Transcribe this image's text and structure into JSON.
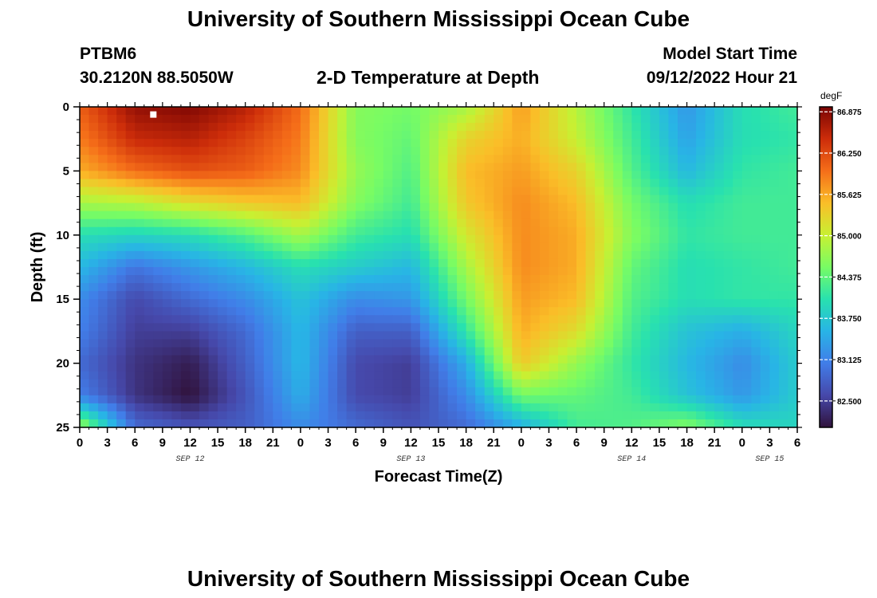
{
  "header": {
    "title": "University of Southern Mississippi Ocean Cube",
    "station_id": "PTBM6",
    "coords": "30.2120N  88.5050W",
    "plot_title": "2-D Temperature at Depth",
    "model_label": "Model Start Time",
    "model_time": "09/12/2022 Hour 21"
  },
  "footer": {
    "title": "University of Southern Mississippi Ocean Cube"
  },
  "chart_data": {
    "type": "heatmap",
    "title": "2-D Temperature at Depth",
    "xlabel": "Forecast Time(Z)",
    "ylabel": "Depth (ft)",
    "colorbar_unit": "degF",
    "x_range_hours": [
      0,
      78
    ],
    "y_range": [
      0,
      25
    ],
    "y_ticks": [
      {
        "value": 0,
        "label": "0"
      },
      {
        "value": 5,
        "label": "5"
      },
      {
        "value": 10,
        "label": "10"
      },
      {
        "value": 15,
        "label": "15"
      },
      {
        "value": 20,
        "label": "20"
      },
      {
        "value": 25,
        "label": "25"
      }
    ],
    "x_tick_labels": [
      "0",
      "3",
      "6",
      "9",
      "12",
      "15",
      "18",
      "21",
      "0",
      "3",
      "6",
      "9",
      "12",
      "15",
      "18",
      "21",
      "0",
      "3",
      "6",
      "9",
      "12",
      "15",
      "18",
      "21",
      "0",
      "3",
      "6"
    ],
    "day_labels": [
      {
        "label": "SEP 12",
        "hour": 12
      },
      {
        "label": "SEP 13",
        "hour": 36
      },
      {
        "label": "SEP 14",
        "hour": 60
      },
      {
        "label": "SEP 15",
        "hour": 75
      }
    ],
    "colorbar": {
      "min": 82.1,
      "max": 86.95,
      "ticks": [
        {
          "value": 82.5,
          "label": "82.500"
        },
        {
          "value": 83.125,
          "label": "83.125"
        },
        {
          "value": 83.75,
          "label": "83.750"
        },
        {
          "value": 84.375,
          "label": "84.375"
        },
        {
          "value": 85.0,
          "label": "85.000"
        },
        {
          "value": 85.625,
          "label": "85.625"
        },
        {
          "value": 86.25,
          "label": "86.250"
        },
        {
          "value": 86.875,
          "label": "86.875"
        }
      ]
    },
    "depth_levels_ft": [
      0,
      2.5,
      5,
      7.5,
      10,
      12.5,
      15,
      17.5,
      20,
      22.5,
      25
    ],
    "time_hours": [
      0,
      6,
      12,
      18,
      24,
      30,
      36,
      42,
      48,
      54,
      60,
      66,
      72,
      78
    ],
    "temperature_degF": [
      [
        86.1,
        86.8,
        86.9,
        86.6,
        86.0,
        84.6,
        84.5,
        84.8,
        85.7,
        84.9,
        84.1,
        83.3,
        84.0,
        84.2
      ],
      [
        85.9,
        86.5,
        86.6,
        86.3,
        85.9,
        84.6,
        84.4,
        85.3,
        85.6,
        85.0,
        84.2,
        83.4,
        84.0,
        84.1
      ],
      [
        85.6,
        86.0,
        86.2,
        86.1,
        85.8,
        84.7,
        84.3,
        85.5,
        85.7,
        85.3,
        84.3,
        83.6,
        84.1,
        84.2
      ],
      [
        84.8,
        84.9,
        85.2,
        85.4,
        85.5,
        84.6,
        84.2,
        85.4,
        85.8,
        85.5,
        84.5,
        84.0,
        84.2,
        84.2
      ],
      [
        84.0,
        83.9,
        84.0,
        84.3,
        84.8,
        84.2,
        84.0,
        85.1,
        85.8,
        85.6,
        84.6,
        84.1,
        84.2,
        84.2
      ],
      [
        83.6,
        83.0,
        83.3,
        83.6,
        84.0,
        83.8,
        83.6,
        84.8,
        85.8,
        85.6,
        84.4,
        84.0,
        84.1,
        84.2
      ],
      [
        83.2,
        82.6,
        82.9,
        83.2,
        83.7,
        83.2,
        83.3,
        84.5,
        85.7,
        85.5,
        84.3,
        84.0,
        84.1,
        84.1
      ],
      [
        83.1,
        82.5,
        82.5,
        82.9,
        83.6,
        82.8,
        82.8,
        84.1,
        85.6,
        85.2,
        84.2,
        83.7,
        83.5,
        83.9
      ],
      [
        82.9,
        82.4,
        82.2,
        82.8,
        83.6,
        82.6,
        82.5,
        83.5,
        85.4,
        84.7,
        84.1,
        83.6,
        83.2,
        83.8
      ],
      [
        83.1,
        82.4,
        82.1,
        82.7,
        83.5,
        82.6,
        82.5,
        83.2,
        84.5,
        84.4,
        84.2,
        83.7,
        83.3,
        83.8
      ],
      [
        84.8,
        82.9,
        82.7,
        82.8,
        83.2,
        82.9,
        82.7,
        82.9,
        83.5,
        84.2,
        84.3,
        84.6,
        84.0,
        83.9
      ]
    ],
    "marker": {
      "hour": 8,
      "depth_ft": 0.35
    }
  }
}
